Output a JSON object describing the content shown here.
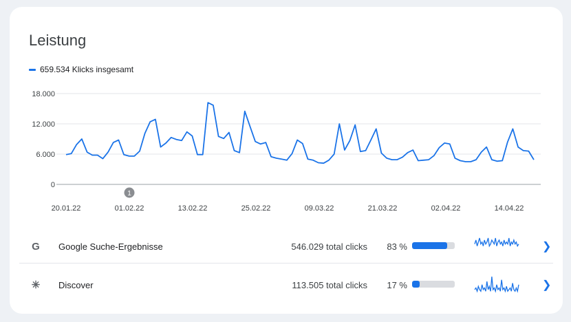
{
  "card": {
    "title": "Leistung"
  },
  "legend": {
    "label": "659.534 Klicks insgesamt",
    "color": "#1a73e8"
  },
  "annotation": {
    "label": "1"
  },
  "chart_data": {
    "type": "line",
    "ylim": [
      0,
      18000
    ],
    "yticks": [
      0,
      6000,
      12000,
      18000
    ],
    "ytick_labels": [
      "0",
      "6.000",
      "12.000",
      "18.000"
    ],
    "xtick_labels": [
      "20.01.22",
      "01.02.22",
      "13.02.22",
      "25.02.22",
      "09.03.22",
      "21.03.22",
      "02.04.22",
      "14.04.22"
    ],
    "series": [
      {
        "color": "#1a73e8",
        "values": [
          5900,
          6100,
          7900,
          9000,
          6400,
          5800,
          5800,
          5100,
          6400,
          8300,
          8800,
          5900,
          5600,
          5600,
          6600,
          10100,
          12400,
          12900,
          7400,
          8200,
          9300,
          8900,
          8700,
          10400,
          9600,
          5900,
          5900,
          16200,
          15700,
          9500,
          9100,
          10300,
          6700,
          6300,
          14500,
          11500,
          8500,
          8000,
          8300,
          5500,
          5200,
          5000,
          4800,
          6100,
          8800,
          8100,
          5000,
          4800,
          4300,
          4200,
          4800,
          6000,
          12000,
          6800,
          8700,
          11800,
          6500,
          6700,
          8800,
          11000,
          6200,
          5200,
          4900,
          4900,
          5400,
          6300,
          6800,
          4700,
          4800,
          4900,
          5700,
          7300,
          8200,
          8000,
          5200,
          4700,
          4500,
          4500,
          4900,
          6400,
          7400,
          4900,
          4600,
          4700,
          8400,
          11000,
          7400,
          6700,
          6600,
          4900
        ]
      }
    ]
  },
  "rows": [
    {
      "icon": "G",
      "label": "Google Suche-Ergebnisse",
      "clicks": "546.029 total clicks",
      "percent_label": "83 %",
      "percent_value": 0.83,
      "spark": [
        6,
        8,
        5,
        7,
        9,
        6,
        7,
        5,
        8,
        6,
        7,
        9,
        5,
        6,
        8,
        7,
        6,
        9,
        5,
        7,
        8,
        6,
        7,
        5,
        8,
        6,
        7,
        6,
        9,
        5,
        7,
        6,
        8,
        6,
        7,
        5,
        6
      ]
    },
    {
      "icon": "✳",
      "label": "Discover",
      "clicks": "113.505 total clicks",
      "percent_label": "17 %",
      "percent_value": 0.17,
      "spark": [
        3,
        4,
        2,
        5,
        3,
        2,
        6,
        3,
        4,
        2,
        8,
        3,
        5,
        2,
        11,
        3,
        4,
        2,
        6,
        3,
        4,
        2,
        9,
        3,
        4,
        2,
        5,
        2,
        3,
        4,
        2,
        7,
        3,
        2,
        4,
        2,
        6
      ]
    }
  ],
  "colors": {
    "accent": "#1a73e8",
    "bar_track": "#dadce0"
  }
}
